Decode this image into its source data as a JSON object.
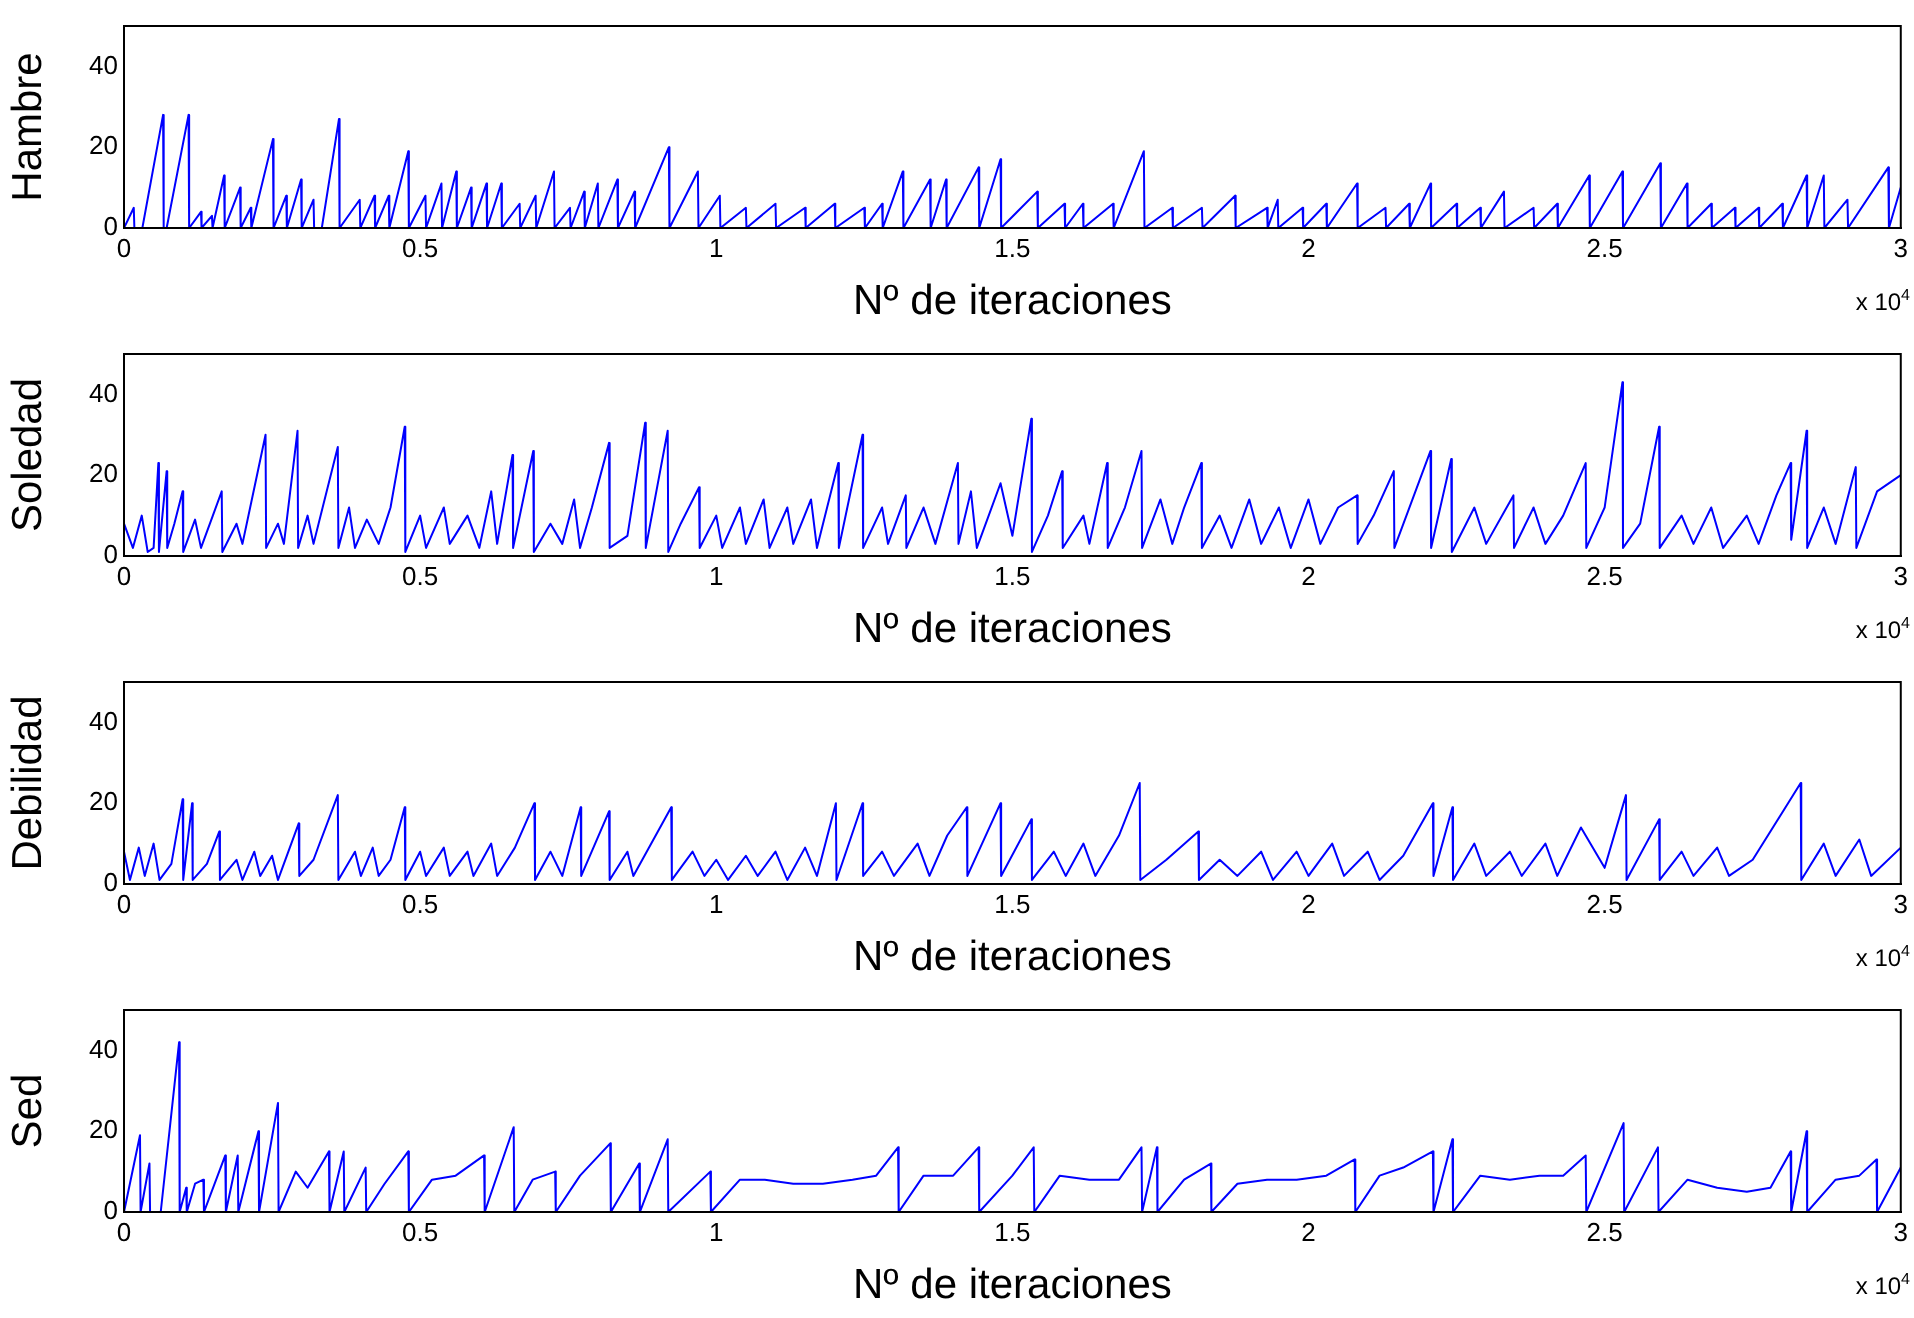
{
  "chart_data": [
    {
      "type": "line",
      "ylabel": "Hambre",
      "xlabel": "Nº de iteraciones",
      "color": "#0000ff",
      "xlim": [
        0,
        3
      ],
      "ylim": [
        0,
        50
      ],
      "yticks": [
        0,
        20,
        40
      ],
      "xticks": [
        0,
        0.5,
        1,
        1.5,
        2,
        2.5,
        3
      ],
      "annotations": [
        "x 10$^{4}$"
      ],
      "x": [
        0,
        0.0165,
        0.0175,
        0.031,
        0.066,
        0.067,
        0.072,
        0.109,
        0.11,
        0.13,
        0.131,
        0.1485,
        0.1495,
        0.169,
        0.17,
        0.196,
        0.197,
        0.214,
        0.215,
        0.2515,
        0.2525,
        0.274,
        0.275,
        0.299,
        0.3,
        0.32,
        0.321,
        0.334,
        0.363,
        0.364,
        0.398,
        0.399,
        0.423,
        0.424,
        0.447,
        0.448,
        0.48,
        0.481,
        0.509,
        0.51,
        0.536,
        0.537,
        0.561,
        0.562,
        0.586,
        0.587,
        0.612,
        0.613,
        0.637,
        0.638,
        0.668,
        0.669,
        0.695,
        0.696,
        0.726,
        0.727,
        0.753,
        0.754,
        0.777,
        0.778,
        0.8,
        0.801,
        0.833,
        0.834,
        0.862,
        0.863,
        0.92,
        0.921,
        0.969,
        0.97,
        1.006,
        1.007,
        1.05,
        1.051,
        1.1,
        1.101,
        1.15,
        1.151,
        1.2,
        1.201,
        1.25,
        1.251,
        1.28,
        1.281,
        1.315,
        1.316,
        1.361,
        1.362,
        1.388,
        1.389,
        1.443,
        1.444,
        1.48,
        1.481,
        1.542,
        1.543,
        1.588,
        1.589,
        1.619,
        1.62,
        1.67,
        1.671,
        1.722,
        1.723,
        1.77,
        1.771,
        1.82,
        1.821,
        1.876,
        1.877,
        1.93,
        1.931,
        1.948,
        1.949,
        1.99,
        1.991,
        2.03,
        2.031,
        2.082,
        2.083,
        2.13,
        2.131,
        2.17,
        2.171,
        2.206,
        2.207,
        2.25,
        2.251,
        2.29,
        2.291,
        2.33,
        2.331,
        2.38,
        2.381,
        2.42,
        2.421,
        2.474,
        2.475,
        2.53,
        2.531,
        2.594,
        2.595,
        2.639,
        2.64,
        2.68,
        2.681,
        2.72,
        2.721,
        2.76,
        2.761,
        2.8,
        2.801,
        2.841,
        2.842,
        2.87,
        2.871,
        2.91,
        2.911,
        2.979,
        2.98,
        3
      ],
      "values": [
        0,
        5,
        0,
        0,
        28,
        0,
        0,
        28,
        0,
        4,
        0,
        3,
        0,
        13,
        0,
        10,
        0,
        5,
        0,
        22,
        0,
        8,
        0,
        12,
        0,
        7,
        0,
        0,
        27,
        0,
        7,
        0,
        8,
        0,
        8,
        0,
        19,
        0,
        8,
        0,
        11,
        0,
        14,
        0,
        10,
        0,
        11,
        0,
        11,
        0,
        6,
        0,
        8,
        0,
        14,
        0,
        5,
        0,
        9,
        0,
        11,
        0,
        12,
        0,
        9,
        0,
        20,
        0,
        14,
        0,
        8,
        0,
        5,
        0,
        6,
        0,
        5,
        0,
        6,
        0,
        5,
        0,
        6,
        0,
        14,
        0,
        12,
        0,
        12,
        0,
        15,
        0,
        17,
        0,
        9,
        0,
        6,
        0,
        6,
        0,
        6,
        0,
        19,
        0,
        5,
        0,
        5,
        0,
        8,
        0,
        5,
        0,
        7,
        0,
        5,
        0,
        6,
        0,
        11,
        0,
        5,
        0,
        6,
        0,
        11,
        0,
        6,
        0,
        5,
        0,
        9,
        0,
        5,
        0,
        6,
        0,
        13,
        0,
        14,
        0,
        16,
        0,
        11,
        0,
        6,
        0,
        5,
        0,
        5,
        0,
        6,
        0,
        13,
        0,
        13,
        0,
        7,
        0,
        15,
        0,
        10
      ]
    },
    {
      "type": "line",
      "ylabel": "Soledad",
      "xlabel": "Nº de iteraciones",
      "color": "#0000ff",
      "xlim": [
        0,
        3
      ],
      "ylim": [
        0,
        50
      ],
      "yticks": [
        0,
        20,
        40
      ],
      "xticks": [
        0,
        0.5,
        1,
        1.5,
        2,
        2.5,
        3
      ],
      "annotations": [
        "x 10$^{4}$"
      ],
      "x": [
        0,
        0.015,
        0.03,
        0.04,
        0.05,
        0.058,
        0.059,
        0.072,
        0.073,
        0.085,
        0.099,
        0.1,
        0.12,
        0.13,
        0.15,
        0.165,
        0.166,
        0.19,
        0.2,
        0.239,
        0.24,
        0.26,
        0.27,
        0.293,
        0.294,
        0.31,
        0.32,
        0.361,
        0.362,
        0.38,
        0.39,
        0.41,
        0.43,
        0.45,
        0.474,
        0.475,
        0.5,
        0.51,
        0.54,
        0.55,
        0.58,
        0.6,
        0.62,
        0.63,
        0.656,
        0.657,
        0.691,
        0.692,
        0.72,
        0.74,
        0.76,
        0.77,
        0.79,
        0.819,
        0.82,
        0.85,
        0.88,
        0.881,
        0.918,
        0.919,
        0.94,
        0.971,
        0.972,
        1,
        1.01,
        1.04,
        1.05,
        1.08,
        1.09,
        1.12,
        1.13,
        1.16,
        1.17,
        1.206,
        1.207,
        1.247,
        1.248,
        1.28,
        1.29,
        1.32,
        1.321,
        1.35,
        1.37,
        1.408,
        1.409,
        1.43,
        1.44,
        1.48,
        1.5,
        1.532,
        1.533,
        1.56,
        1.584,
        1.585,
        1.62,
        1.63,
        1.66,
        1.661,
        1.69,
        1.718,
        1.719,
        1.75,
        1.77,
        1.79,
        1.819,
        1.82,
        1.85,
        1.87,
        1.9,
        1.92,
        1.95,
        1.97,
        2,
        2.02,
        2.05,
        2.082,
        2.083,
        2.11,
        2.144,
        2.145,
        2.206,
        2.207,
        2.241,
        2.242,
        2.28,
        2.3,
        2.346,
        2.347,
        2.38,
        2.4,
        2.43,
        2.468,
        2.469,
        2.5,
        2.53,
        2.531,
        2.56,
        2.592,
        2.593,
        2.63,
        2.65,
        2.68,
        2.7,
        2.74,
        2.76,
        2.79,
        2.814,
        2.815,
        2.841,
        2.842,
        2.87,
        2.89,
        2.924,
        2.925,
        2.96,
        3
      ],
      "values": [
        8,
        2,
        10,
        1,
        2,
        23,
        1,
        21,
        2,
        8,
        16,
        1,
        9,
        2,
        10,
        16,
        1,
        8,
        3,
        30,
        2,
        8,
        3,
        31,
        2,
        10,
        3,
        27,
        2,
        12,
        2,
        9,
        3,
        12,
        32,
        1,
        10,
        2,
        12,
        3,
        10,
        2,
        16,
        3,
        25,
        2,
        26,
        1,
        8,
        3,
        14,
        2,
        12,
        28,
        2,
        5,
        33,
        2,
        31,
        1,
        8,
        17,
        2,
        10,
        2,
        12,
        3,
        14,
        2,
        12,
        3,
        14,
        2,
        23,
        2,
        30,
        2,
        12,
        3,
        15,
        2,
        12,
        3,
        23,
        3,
        16,
        2,
        18,
        5,
        34,
        1,
        10,
        21,
        2,
        10,
        3,
        23,
        2,
        12,
        26,
        2,
        14,
        3,
        12,
        23,
        2,
        10,
        2,
        14,
        3,
        12,
        2,
        14,
        3,
        12,
        15,
        3,
        10,
        21,
        2,
        26,
        2,
        24,
        1,
        12,
        3,
        15,
        2,
        12,
        3,
        10,
        23,
        2,
        12,
        43,
        2,
        8,
        32,
        2,
        10,
        3,
        12,
        2,
        10,
        3,
        15,
        23,
        4,
        31,
        2,
        12,
        3,
        22,
        2,
        16,
        20
      ]
    },
    {
      "type": "line",
      "ylabel": "Debilidad",
      "xlabel": "Nº de iteraciones",
      "color": "#0000ff",
      "xlim": [
        0,
        3
      ],
      "ylim": [
        0,
        50
      ],
      "yticks": [
        0,
        20,
        40
      ],
      "xticks": [
        0,
        0.5,
        1,
        1.5,
        2,
        2.5,
        3
      ],
      "annotations": [
        "x 10$^{4}$"
      ],
      "x": [
        0,
        0.01,
        0.025,
        0.035,
        0.05,
        0.06,
        0.08,
        0.099,
        0.1,
        0.115,
        0.116,
        0.14,
        0.161,
        0.162,
        0.19,
        0.2,
        0.22,
        0.23,
        0.25,
        0.26,
        0.295,
        0.296,
        0.32,
        0.361,
        0.362,
        0.39,
        0.4,
        0.42,
        0.43,
        0.45,
        0.474,
        0.475,
        0.5,
        0.51,
        0.54,
        0.55,
        0.58,
        0.59,
        0.62,
        0.63,
        0.66,
        0.693,
        0.694,
        0.72,
        0.74,
        0.771,
        0.772,
        0.819,
        0.82,
        0.85,
        0.86,
        0.924,
        0.925,
        0.96,
        0.98,
        1,
        1.02,
        1.05,
        1.07,
        1.1,
        1.12,
        1.15,
        1.17,
        1.202,
        1.203,
        1.247,
        1.248,
        1.28,
        1.3,
        1.34,
        1.36,
        1.39,
        1.423,
        1.424,
        1.48,
        1.481,
        1.532,
        1.533,
        1.57,
        1.59,
        1.62,
        1.64,
        1.68,
        1.715,
        1.716,
        1.76,
        1.814,
        1.815,
        1.85,
        1.88,
        1.92,
        1.94,
        1.98,
        2,
        2.04,
        2.06,
        2.1,
        2.12,
        2.16,
        2.21,
        2.211,
        2.243,
        2.244,
        2.28,
        2.3,
        2.34,
        2.36,
        2.4,
        2.42,
        2.46,
        2.5,
        2.536,
        2.537,
        2.592,
        2.593,
        2.63,
        2.65,
        2.69,
        2.71,
        2.75,
        2.831,
        2.832,
        2.87,
        2.89,
        2.93,
        2.95,
        3
      ],
      "values": [
        8,
        1,
        9,
        2,
        10,
        1,
        5,
        21,
        1,
        20,
        1,
        5,
        13,
        1,
        6,
        1,
        8,
        2,
        7,
        1,
        15,
        2,
        6,
        22,
        1,
        8,
        2,
        9,
        2,
        6,
        19,
        1,
        8,
        2,
        9,
        2,
        8,
        2,
        10,
        2,
        9,
        20,
        1,
        8,
        2,
        19,
        2,
        18,
        1,
        8,
        2,
        19,
        1,
        8,
        2,
        6,
        1,
        7,
        2,
        8,
        1,
        9,
        2,
        20,
        1,
        20,
        2,
        8,
        2,
        10,
        2,
        12,
        19,
        2,
        20,
        2,
        16,
        1,
        8,
        2,
        10,
        2,
        12,
        25,
        1,
        6,
        13,
        1,
        6,
        2,
        8,
        1,
        8,
        2,
        10,
        2,
        8,
        1,
        7,
        20,
        2,
        19,
        1,
        10,
        2,
        8,
        2,
        10,
        2,
        14,
        4,
        22,
        1,
        16,
        1,
        8,
        2,
        9,
        2,
        6,
        25,
        1,
        10,
        2,
        11,
        2,
        9
      ]
    },
    {
      "type": "line",
      "ylabel": "Sed",
      "xlabel": "Nº de iteraciones",
      "color": "#0000ff",
      "xlim": [
        0,
        3
      ],
      "ylim": [
        0,
        50
      ],
      "yticks": [
        0,
        20,
        40
      ],
      "xticks": [
        0,
        0.5,
        1,
        1.5,
        2,
        2.5,
        3
      ],
      "annotations": [
        "x 10$^{4}$"
      ],
      "x": [
        0,
        0.027,
        0.028,
        0.043,
        0.044,
        0.062,
        0.093,
        0.094,
        0.105,
        0.106,
        0.12,
        0.134,
        0.135,
        0.171,
        0.172,
        0.192,
        0.193,
        0.227,
        0.228,
        0.26,
        0.261,
        0.29,
        0.31,
        0.346,
        0.347,
        0.371,
        0.372,
        0.408,
        0.409,
        0.44,
        0.48,
        0.481,
        0.52,
        0.56,
        0.608,
        0.609,
        0.658,
        0.659,
        0.69,
        0.728,
        0.729,
        0.77,
        0.821,
        0.822,
        0.87,
        0.871,
        0.918,
        0.919,
        0.99,
        0.991,
        1.04,
        1.082,
        1.13,
        1.18,
        1.23,
        1.27,
        1.307,
        1.308,
        1.35,
        1.4,
        1.443,
        1.444,
        1.5,
        1.536,
        1.537,
        1.58,
        1.63,
        1.68,
        1.718,
        1.719,
        1.744,
        1.745,
        1.79,
        1.835,
        1.836,
        1.88,
        1.93,
        1.98,
        2.03,
        2.078,
        2.079,
        2.12,
        2.16,
        2.21,
        2.211,
        2.243,
        2.244,
        2.29,
        2.34,
        2.39,
        2.43,
        2.468,
        2.469,
        2.532,
        2.533,
        2.59,
        2.591,
        2.64,
        2.69,
        2.74,
        2.78,
        2.814,
        2.815,
        2.841,
        2.842,
        2.89,
        2.93,
        2.959,
        2.96,
        3
      ],
      "values": [
        0,
        19,
        0,
        12,
        0,
        0,
        42,
        0,
        6,
        0,
        7,
        8,
        0,
        14,
        0,
        14,
        0,
        20,
        0,
        27,
        0,
        10,
        6,
        15,
        0,
        15,
        0,
        11,
        0,
        7,
        15,
        0,
        8,
        9,
        14,
        0,
        21,
        0,
        8,
        10,
        0,
        9,
        17,
        0,
        12,
        0,
        18,
        0,
        10,
        0,
        8,
        8,
        7,
        7,
        8,
        9,
        16,
        0,
        9,
        9,
        16,
        0,
        9,
        16,
        0,
        9,
        8,
        8,
        16,
        0,
        16,
        0,
        8,
        12,
        0,
        7,
        8,
        8,
        9,
        13,
        0,
        9,
        11,
        15,
        0,
        18,
        0,
        9,
        8,
        9,
        9,
        14,
        0,
        22,
        0,
        16,
        0,
        8,
        6,
        5,
        6,
        15,
        0,
        20,
        0,
        8,
        9,
        13,
        0,
        11
      ]
    }
  ]
}
